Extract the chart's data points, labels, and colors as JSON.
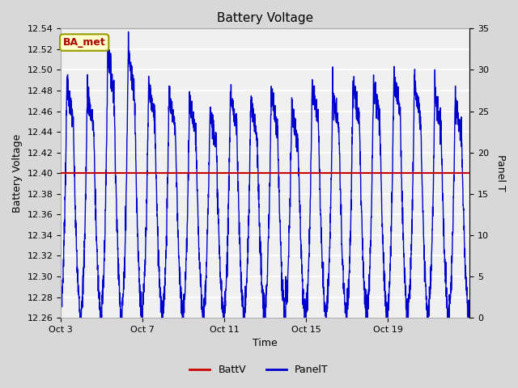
{
  "title": "Battery Voltage",
  "xlabel": "Time",
  "ylabel_left": "Battery Voltage",
  "ylabel_right": "Panel T",
  "legend_label_batt": "BattV",
  "legend_label_panel": "PanelT",
  "annotation_text": "BA_met",
  "batt_value": 12.4,
  "ylim_left": [
    12.26,
    12.54
  ],
  "ylim_right": [
    0,
    35
  ],
  "batt_color": "#cc0000",
  "panel_color": "#0000cc",
  "background_color": "#dcdcdc",
  "tick_dates": [
    "Oct 3",
    "Oct 7",
    "Oct 11",
    "Oct 15",
    "Oct 19"
  ],
  "tick_positions": [
    0,
    4,
    8,
    12,
    16
  ],
  "days": 20,
  "n_points_per_day": 144
}
